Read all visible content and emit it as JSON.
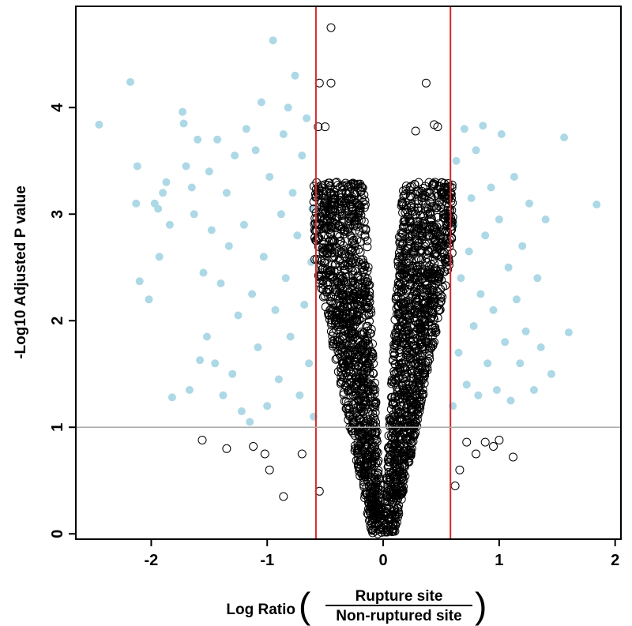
{
  "chart_data": {
    "type": "scatter",
    "xlabel": "Log Ratio",
    "xlabel_numerator": "Rupture site",
    "xlabel_denominator": "Non-ruptured site",
    "ylabel": "-Log10 Adjusted P value",
    "xlim": [
      -2.65,
      2.05
    ],
    "ylim": [
      -0.05,
      4.95
    ],
    "x_ticks": [
      -2,
      -1,
      0,
      1,
      2
    ],
    "y_ticks": [
      0,
      1,
      2,
      3,
      4
    ],
    "thresholds": {
      "x_lines": [
        -0.58,
        0.58
      ],
      "x_line_color": "#d62728",
      "y_line": 1.0,
      "y_line_color": "#aaaaaa"
    },
    "grid": false,
    "series": [
      {
        "marker": "filled-circle",
        "color": "#add8e6",
        "points": [
          [
            -2.45,
            3.84
          ],
          [
            -2.18,
            4.24
          ],
          [
            -2.12,
            3.45
          ],
          [
            -2.13,
            3.1
          ],
          [
            -2.1,
            2.37
          ],
          [
            -2.02,
            2.2
          ],
          [
            -1.97,
            3.1
          ],
          [
            -1.94,
            3.05
          ],
          [
            -1.93,
            2.6
          ],
          [
            -1.9,
            3.2
          ],
          [
            -1.87,
            3.3
          ],
          [
            -1.84,
            2.9
          ],
          [
            -1.82,
            1.28
          ],
          [
            -1.73,
            3.96
          ],
          [
            -1.72,
            3.85
          ],
          [
            -1.7,
            3.45
          ],
          [
            -1.67,
            1.35
          ],
          [
            -1.65,
            3.25
          ],
          [
            -1.63,
            3.0
          ],
          [
            -1.6,
            3.7
          ],
          [
            -1.58,
            1.63
          ],
          [
            -1.55,
            2.45
          ],
          [
            -1.52,
            1.85
          ],
          [
            -1.5,
            3.4
          ],
          [
            -1.48,
            2.85
          ],
          [
            -1.45,
            1.6
          ],
          [
            -1.43,
            3.7
          ],
          [
            -1.4,
            2.35
          ],
          [
            -1.38,
            1.3
          ],
          [
            -1.35,
            3.2
          ],
          [
            -1.33,
            2.7
          ],
          [
            -1.3,
            1.5
          ],
          [
            -1.28,
            3.55
          ],
          [
            -1.25,
            2.05
          ],
          [
            -1.22,
            1.15
          ],
          [
            -1.2,
            2.9
          ],
          [
            -1.18,
            3.8
          ],
          [
            -1.15,
            1.05
          ],
          [
            -1.13,
            2.25
          ],
          [
            -1.1,
            3.6
          ],
          [
            -1.08,
            1.75
          ],
          [
            -1.05,
            4.05
          ],
          [
            -1.03,
            2.6
          ],
          [
            -1.0,
            1.2
          ],
          [
            -0.98,
            3.35
          ],
          [
            -0.95,
            4.63
          ],
          [
            -0.93,
            2.1
          ],
          [
            -0.9,
            1.45
          ],
          [
            -0.88,
            3.0
          ],
          [
            -0.86,
            3.75
          ],
          [
            -0.84,
            2.4
          ],
          [
            -0.82,
            4.0
          ],
          [
            -0.8,
            1.85
          ],
          [
            -0.78,
            3.2
          ],
          [
            -0.76,
            4.3
          ],
          [
            -0.74,
            2.8
          ],
          [
            -0.72,
            1.3
          ],
          [
            -0.7,
            3.55
          ],
          [
            -0.68,
            2.15
          ],
          [
            -0.66,
            3.9
          ],
          [
            -0.64,
            1.6
          ],
          [
            -0.62,
            2.55
          ],
          [
            -0.61,
            3.05
          ],
          [
            -0.6,
            1.1
          ],
          [
            0.6,
            1.2
          ],
          [
            0.61,
            2.9
          ],
          [
            0.63,
            3.5
          ],
          [
            0.65,
            1.7
          ],
          [
            0.67,
            2.4
          ],
          [
            0.7,
            3.8
          ],
          [
            0.72,
            1.4
          ],
          [
            0.74,
            2.65
          ],
          [
            0.76,
            3.15
          ],
          [
            0.78,
            1.95
          ],
          [
            0.8,
            3.6
          ],
          [
            0.82,
            1.3
          ],
          [
            0.84,
            2.25
          ],
          [
            0.86,
            3.83
          ],
          [
            0.88,
            2.8
          ],
          [
            0.9,
            1.6
          ],
          [
            0.93,
            3.25
          ],
          [
            0.95,
            2.1
          ],
          [
            0.98,
            1.35
          ],
          [
            1.0,
            2.95
          ],
          [
            1.02,
            3.75
          ],
          [
            1.05,
            1.8
          ],
          [
            1.08,
            2.5
          ],
          [
            1.1,
            1.25
          ],
          [
            1.13,
            3.35
          ],
          [
            1.15,
            2.2
          ],
          [
            1.18,
            1.6
          ],
          [
            1.2,
            2.7
          ],
          [
            1.23,
            1.9
          ],
          [
            1.26,
            3.1
          ],
          [
            1.3,
            1.35
          ],
          [
            1.33,
            2.4
          ],
          [
            1.36,
            1.75
          ],
          [
            1.4,
            2.95
          ],
          [
            1.45,
            1.5
          ],
          [
            1.56,
            3.72
          ],
          [
            1.6,
            1.89
          ],
          [
            1.84,
            3.09
          ]
        ]
      },
      {
        "marker": "open-circle",
        "color": "#000000",
        "points": [
          [
            -0.45,
            4.75
          ],
          [
            -0.55,
            4.23
          ],
          [
            -0.45,
            4.23
          ],
          [
            0.37,
            4.23
          ],
          [
            -0.56,
            3.82
          ],
          [
            -0.5,
            3.82
          ],
          [
            0.44,
            3.84
          ],
          [
            0.47,
            3.82
          ],
          [
            0.28,
            3.78
          ],
          [
            -0.55,
            0.4
          ],
          [
            -0.7,
            0.75
          ],
          [
            -0.86,
            0.35
          ],
          [
            -0.98,
            0.6
          ],
          [
            -1.02,
            0.75
          ],
          [
            -1.12,
            0.82
          ],
          [
            -1.35,
            0.8
          ],
          [
            -1.56,
            0.88
          ],
          [
            0.66,
            0.6
          ],
          [
            0.72,
            0.86
          ],
          [
            0.8,
            0.75
          ],
          [
            0.88,
            0.86
          ],
          [
            0.95,
            0.82
          ],
          [
            1.0,
            0.88
          ],
          [
            1.12,
            0.72
          ],
          [
            0.62,
            0.45
          ]
        ]
      }
    ]
  }
}
